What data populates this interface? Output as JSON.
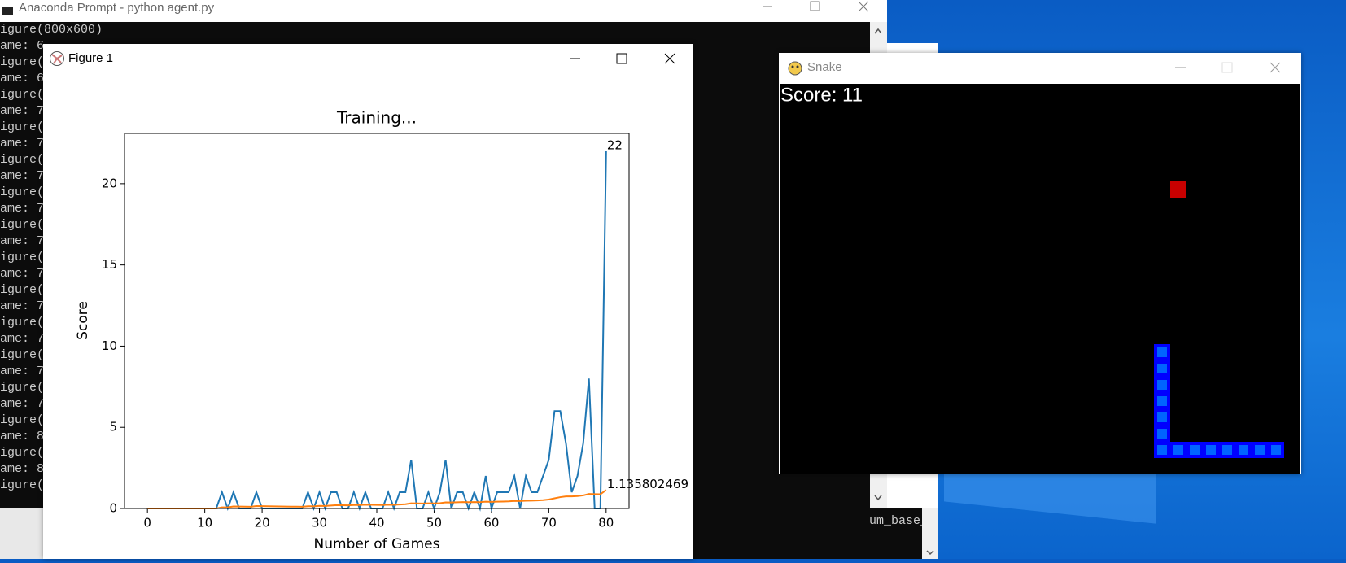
{
  "terminal": {
    "title": "Anaconda Prompt - python  agent.py",
    "lines": [
      "igure(800x600)",
      "ame: 6",
      "igure(",
      "ame: 6",
      "igure(",
      "ame: 7",
      "igure(",
      "ame: 7",
      "igure(",
      "ame: 7",
      "igure(",
      "ame: 7",
      "igure(",
      "ame: 7",
      "igure(",
      "ame: 7",
      "igure(",
      "ame: 7",
      "igure(",
      "ame: 7",
      "igure(",
      "ame: 7",
      "igure(",
      "ame: 7",
      "igure(",
      "ame: 8",
      "igure(",
      "ame: 8",
      "igure("
    ],
    "behind_text": "rratum_base_scipt/ferratum_base_"
  },
  "figure_window": {
    "title": "Figure 1"
  },
  "snake_window": {
    "title": "Snake",
    "score": "Score: 11"
  },
  "chart_data": {
    "type": "line",
    "title": "Training...",
    "x_label": "Number of Games",
    "y_label": "Score",
    "xlim": [
      -4,
      84
    ],
    "ylim": [
      0,
      23.1
    ],
    "xticks": [
      0,
      10,
      20,
      30,
      40,
      50,
      60,
      70,
      80
    ],
    "yticks": [
      0,
      5,
      10,
      15,
      20
    ],
    "x": [
      0,
      1,
      2,
      3,
      4,
      5,
      6,
      7,
      8,
      9,
      10,
      11,
      12,
      13,
      14,
      15,
      16,
      17,
      18,
      19,
      20,
      21,
      22,
      23,
      24,
      25,
      26,
      27,
      28,
      29,
      30,
      31,
      32,
      33,
      34,
      35,
      36,
      37,
      38,
      39,
      40,
      41,
      42,
      43,
      44,
      45,
      46,
      47,
      48,
      49,
      50,
      51,
      52,
      53,
      54,
      55,
      56,
      57,
      58,
      59,
      60,
      61,
      62,
      63,
      64,
      65,
      66,
      67,
      68,
      69,
      70,
      71,
      72,
      73,
      74,
      75,
      76,
      77,
      78,
      79,
      80
    ],
    "series": [
      {
        "color": "#1f77b4",
        "values": [
          0,
          0,
          0,
          0,
          0,
          0,
          0,
          0,
          0,
          0,
          0,
          0,
          0,
          1,
          0,
          1,
          0,
          0,
          0,
          1,
          0,
          0,
          0,
          0,
          0,
          0,
          0,
          0,
          1,
          0,
          1,
          0,
          1,
          1,
          0,
          0,
          1,
          0,
          1,
          0,
          0,
          0,
          1,
          0,
          1,
          1,
          3,
          0,
          0,
          1,
          0,
          1,
          3,
          0,
          1,
          1,
          0,
          1,
          0,
          2,
          0,
          1,
          1,
          1,
          2,
          0,
          2,
          1,
          1,
          2,
          3,
          6,
          6,
          4,
          1,
          2,
          4,
          8,
          0,
          0,
          22
        ]
      },
      {
        "color": "#ff7f0e",
        "values": [
          0,
          0,
          0,
          0,
          0,
          0,
          0,
          0,
          0,
          0,
          0,
          0,
          0,
          0.071,
          0.067,
          0.125,
          0.118,
          0.111,
          0.105,
          0.15,
          0.143,
          0.136,
          0.13,
          0.125,
          0.12,
          0.115,
          0.111,
          0.107,
          0.138,
          0.133,
          0.161,
          0.156,
          0.182,
          0.206,
          0.2,
          0.194,
          0.216,
          0.211,
          0.231,
          0.225,
          0.22,
          0.214,
          0.233,
          0.227,
          0.244,
          0.261,
          0.319,
          0.313,
          0.306,
          0.32,
          0.314,
          0.327,
          0.377,
          0.37,
          0.382,
          0.393,
          0.386,
          0.397,
          0.39,
          0.417,
          0.41,
          0.419,
          0.429,
          0.438,
          0.462,
          0.455,
          0.478,
          0.485,
          0.493,
          0.514,
          0.549,
          0.625,
          0.699,
          0.743,
          0.747,
          0.763,
          0.805,
          0.897,
          0.886,
          0.875,
          1.135802469
        ]
      }
    ]
  }
}
